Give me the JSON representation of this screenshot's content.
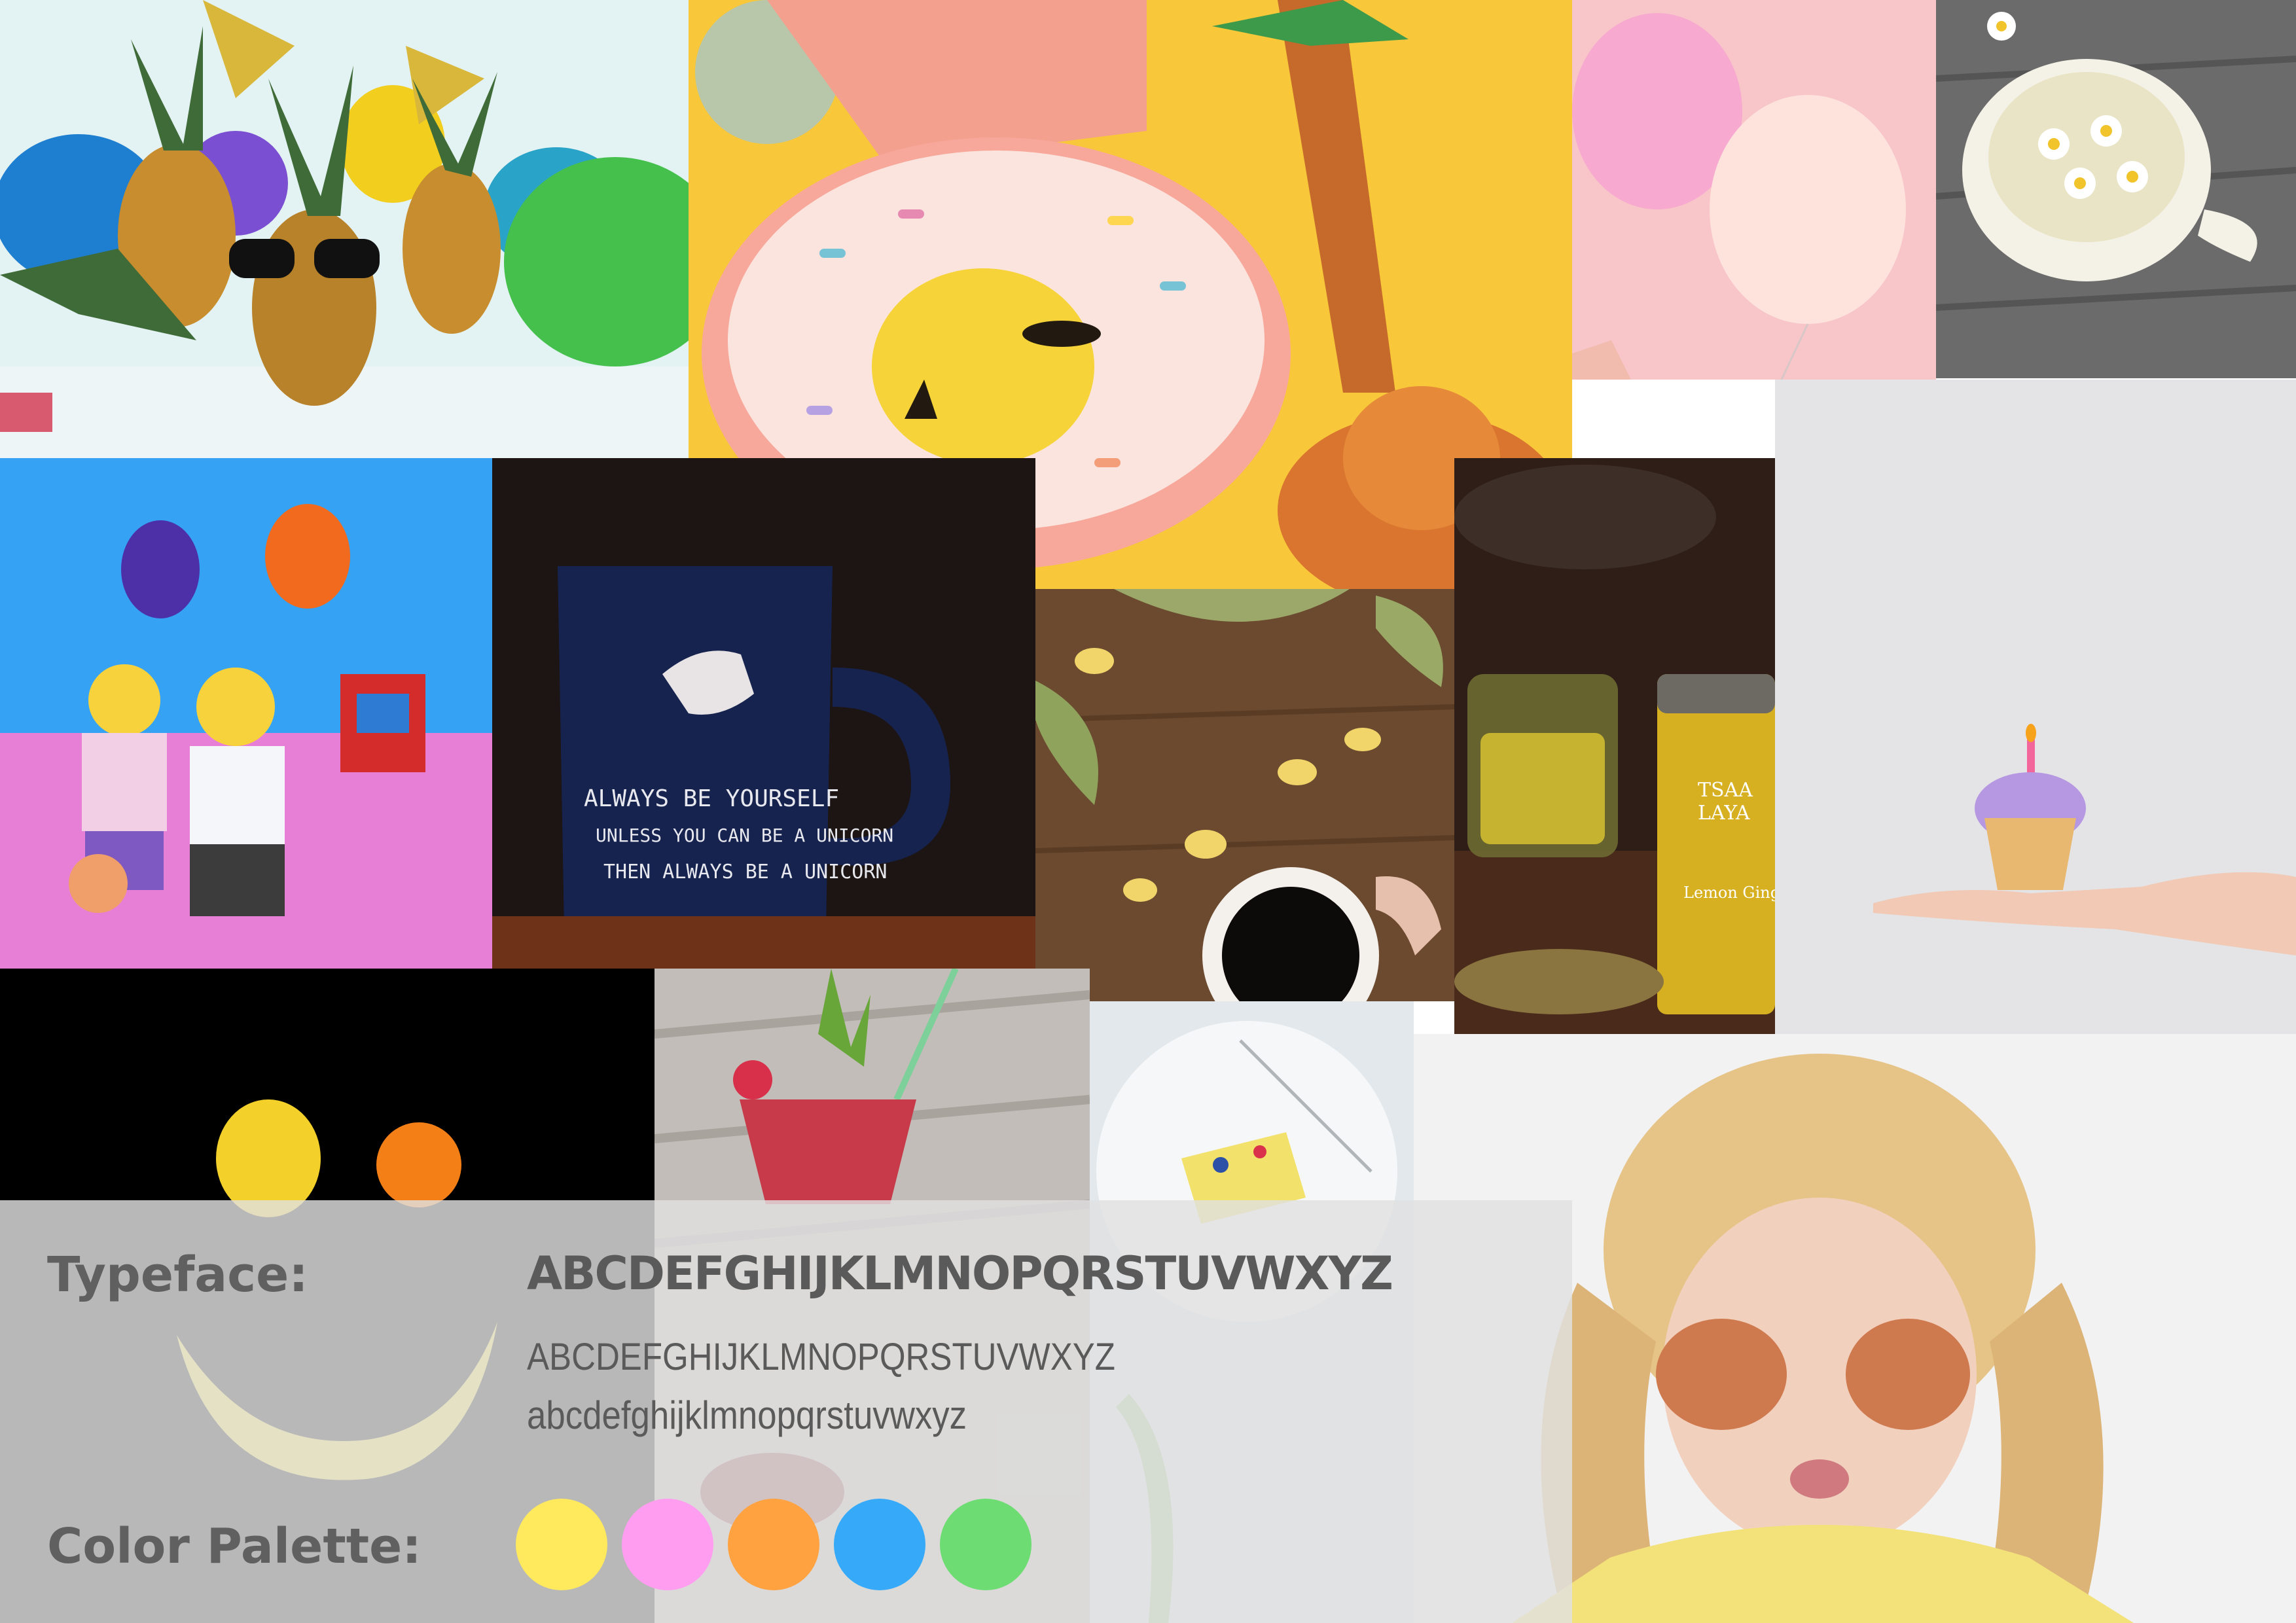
{
  "moodboard": {
    "typeface_label": "Typeface:",
    "color_palette_label": "Color Palette:",
    "alphabet_display": "ABCDEFGHIJKLMNOPQRSTUVWXYZ",
    "alphabet_upper": "ABCDEFGHIJKLMNOPQRSTUVWXYZ",
    "alphabet_lower": "abcdefghijklmnopqrstuvwxyz",
    "palette": [
      "#ffe95c",
      "#ff9ef0",
      "#ffa23f",
      "#36aaf8",
      "#6ddc72"
    ]
  },
  "photos": {
    "mug": {
      "line1": "ALWAYS BE YOURSELF",
      "line2": "UNLESS YOU CAN BE A UNICORN",
      "line3": "THEN ALWAYS BE A UNICORN"
    },
    "tea_tin": {
      "brand_line1": "TSAA",
      "brand_line2": "LAYA",
      "flavor": "Lemon Ginger"
    }
  }
}
